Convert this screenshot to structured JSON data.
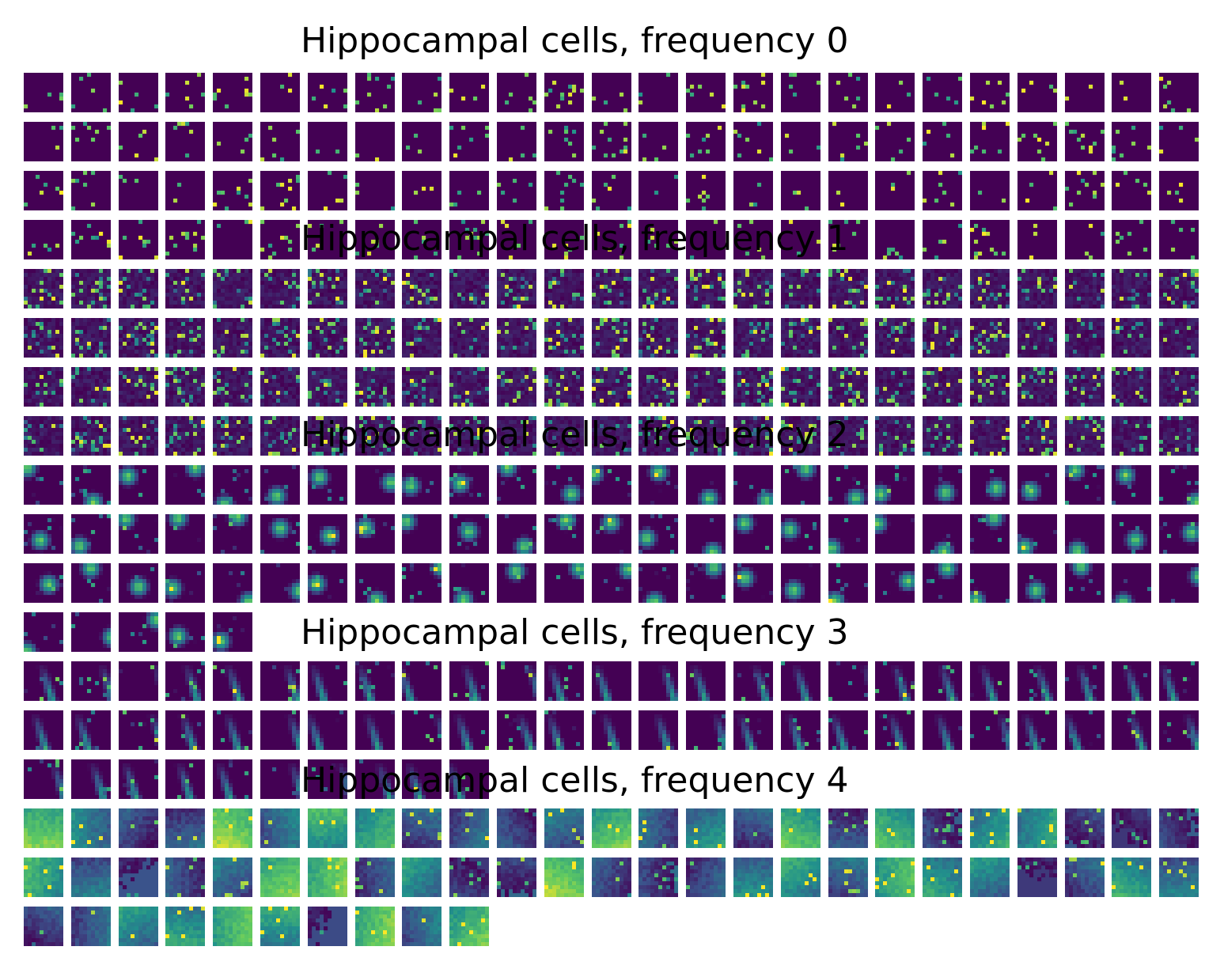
{
  "figure": {
    "colormap": [
      "#440154",
      "#3b528b",
      "#21918c",
      "#5ec962",
      "#fde725"
    ],
    "background": "#440154",
    "panels": [
      {
        "title": "Hippocampal cells, frequency 0",
        "tile_count": 100,
        "style": "sparse"
      },
      {
        "title": "Hippocampal cells, frequency 1",
        "tile_count": 100,
        "style": "speckle"
      },
      {
        "title": "Hippocampal cells, frequency 2",
        "tile_count": 80,
        "style": "blob"
      },
      {
        "title": "Hippocampal cells, frequency 3",
        "tile_count": 60,
        "style": "streak"
      },
      {
        "title": "Hippocampal cells, frequency 4",
        "tile_count": 60,
        "style": "gradient"
      }
    ]
  }
}
